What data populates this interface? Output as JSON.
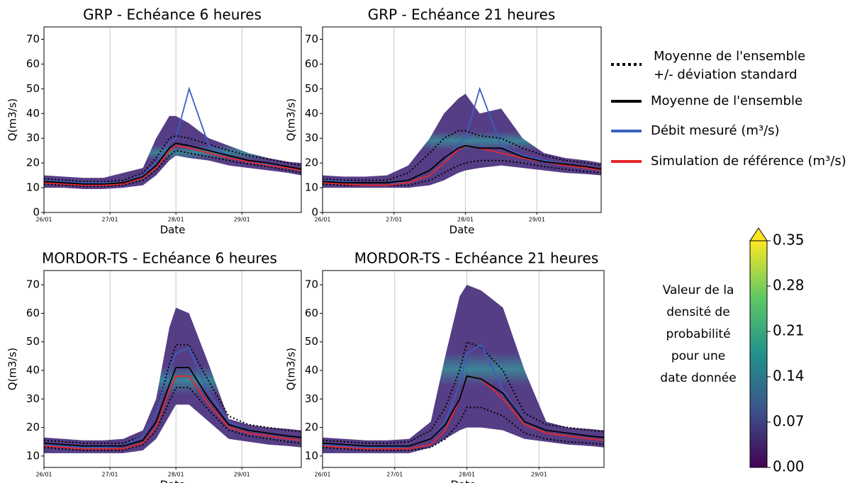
{
  "chart_data": [
    {
      "type": "line",
      "title": "GRP - Echéance 6 heures",
      "xlabel": "Date",
      "ylabel": "Q(m3/s)",
      "x": [
        0,
        0.3,
        0.6,
        0.9,
        1.2,
        1.5,
        1.7,
        1.9,
        2.0,
        2.2,
        2.5,
        2.8,
        3.1,
        3.4,
        3.7,
        3.9
      ],
      "xlim": [
        0,
        3.9
      ],
      "xticks": [
        {
          "value": 0,
          "label": "26/01"
        },
        {
          "value": 1,
          "label": "27/01"
        },
        {
          "value": 2,
          "label": "28/01"
        },
        {
          "value": 3,
          "label": "29/01"
        }
      ],
      "ylim": [
        0,
        75
      ],
      "yticks": [
        0,
        10,
        20,
        30,
        40,
        50,
        60,
        70
      ],
      "grid": "x",
      "band": {
        "color": "#472d7b",
        "lower": [
          10,
          10,
          9.5,
          9.5,
          10,
          11,
          15,
          21,
          23,
          22,
          21,
          19,
          18,
          17,
          16,
          15
        ],
        "upper": [
          15,
          14.5,
          14,
          14,
          16,
          18,
          30,
          39,
          39,
          36,
          30,
          27,
          24,
          22,
          20.5,
          20
        ]
      },
      "series": [
        {
          "color": "#000000",
          "style": "dotted",
          "values": [
            13.5,
            13,
            12.5,
            12.5,
            13,
            16,
            22,
            30,
            31,
            30,
            27.5,
            25,
            23,
            21.5,
            20,
            19
          ]
        },
        {
          "color": "#000000",
          "style": "dotted",
          "values": [
            11.5,
            11,
            10.5,
            10.5,
            11,
            13,
            17,
            23,
            25,
            24,
            22.5,
            21,
            19.5,
            18.5,
            17,
            16
          ]
        },
        {
          "color": "#3a5fbf",
          "style": "solid",
          "values": [
            13,
            12.5,
            12,
            12,
            12,
            15,
            20,
            28,
            30,
            50,
            27,
            23,
            21,
            19.5,
            18.5,
            17.5
          ]
        },
        {
          "color": "#e8262a",
          "style": "solid",
          "values": [
            12,
            11.5,
            11,
            11,
            11.5,
            14,
            18,
            25,
            27,
            26,
            24,
            22,
            20.5,
            19,
            18,
            17
          ]
        },
        {
          "color": "#000000",
          "style": "solid",
          "values": [
            12.5,
            12,
            11.5,
            11.5,
            12,
            14.5,
            19,
            26,
            28,
            27,
            25,
            23,
            21,
            20,
            18.5,
            17.5
          ]
        }
      ]
    },
    {
      "type": "line",
      "title": "GRP - Echéance 21 heures",
      "xlabel": "Date",
      "ylabel": "Q(m3/s)",
      "x": [
        0,
        0.3,
        0.6,
        0.9,
        1.2,
        1.5,
        1.7,
        1.9,
        2.0,
        2.2,
        2.5,
        2.8,
        3.1,
        3.4,
        3.7,
        3.9
      ],
      "xlim": [
        0,
        3.9
      ],
      "xticks": [
        {
          "value": 0,
          "label": "26/01"
        },
        {
          "value": 1,
          "label": "27/01"
        },
        {
          "value": 2,
          "label": "28/01"
        },
        {
          "value": 3,
          "label": "29/01"
        }
      ],
      "ylim": [
        0,
        75
      ],
      "yticks": [
        0,
        10,
        20,
        30,
        40,
        50,
        60,
        70
      ],
      "grid": "x",
      "band": {
        "color": "#472d7b",
        "lower": [
          10,
          10,
          10,
          10,
          10,
          11,
          13,
          16,
          17,
          18,
          19,
          18,
          17,
          16,
          15.5,
          15
        ],
        "upper": [
          15,
          14.5,
          14.5,
          15,
          19,
          30,
          40,
          46,
          48,
          40,
          42,
          30,
          24,
          22,
          21,
          20
        ]
      },
      "series": [
        {
          "color": "#000000",
          "style": "dotted",
          "values": [
            13.5,
            13,
            13,
            13,
            16,
            24,
            30,
            33,
            33,
            31,
            30,
            26,
            23,
            21,
            20,
            19
          ]
        },
        {
          "color": "#000000",
          "style": "dotted",
          "values": [
            11.5,
            11,
            11,
            11,
            11,
            13,
            16,
            19,
            20,
            21,
            21,
            20,
            18.5,
            17.5,
            16.5,
            16
          ]
        },
        {
          "color": "#3a5fbf",
          "style": "solid",
          "values": [
            13,
            12.5,
            12,
            12,
            12,
            15,
            20,
            28,
            30,
            50,
            27,
            23,
            21,
            19.5,
            18.5,
            17.5
          ]
        },
        {
          "color": "#e8262a",
          "style": "solid",
          "values": [
            12,
            11.5,
            11,
            11,
            12,
            15,
            20,
            25.5,
            27,
            26,
            24,
            22,
            20.5,
            19,
            18,
            17
          ]
        },
        {
          "color": "#000000",
          "style": "solid",
          "values": [
            12.5,
            12,
            12,
            12,
            13,
            17,
            22,
            26,
            27,
            26,
            26,
            22.5,
            20.5,
            19.5,
            18.5,
            17.5
          ]
        }
      ]
    },
    {
      "type": "line",
      "title": "MORDOR-TS - Echéance 6 heures",
      "xlabel": "Date",
      "ylabel": "Q(m3/s)",
      "x": [
        0,
        0.3,
        0.6,
        0.9,
        1.2,
        1.5,
        1.7,
        1.9,
        2.0,
        2.2,
        2.5,
        2.8,
        3.1,
        3.4,
        3.7,
        3.9
      ],
      "xlim": [
        0,
        3.9
      ],
      "xticks": [
        {
          "value": 0,
          "label": "26/01"
        },
        {
          "value": 1,
          "label": "27/01"
        },
        {
          "value": 2,
          "label": "28/01"
        },
        {
          "value": 3,
          "label": "29/01"
        }
      ],
      "ylim": [
        6,
        75
      ],
      "yticks": [
        10,
        20,
        30,
        40,
        50,
        60,
        70
      ],
      "grid": "x",
      "band": {
        "color": "#472d7b",
        "lower": [
          11,
          11,
          11,
          11,
          11,
          12,
          16,
          24,
          28,
          28,
          22,
          16,
          15,
          14,
          13.5,
          13
        ],
        "upper": [
          16.5,
          16,
          15.5,
          15.5,
          16,
          19,
          30,
          55,
          62,
          60,
          42,
          23,
          21,
          20,
          19.5,
          19
        ]
      },
      "series": [
        {
          "color": "#000000",
          "style": "dotted",
          "values": [
            15.5,
            15,
            14.5,
            14.5,
            14.5,
            17,
            25,
            42,
            49,
            49,
            36,
            24,
            21,
            20,
            19,
            18.5
          ]
        },
        {
          "color": "#000000",
          "style": "dotted",
          "values": [
            13,
            12.5,
            12,
            12,
            12,
            14,
            19,
            29,
            34,
            34,
            26,
            19,
            17,
            16,
            15,
            14.5
          ]
        },
        {
          "color": "#3a5fbf",
          "style": "solid",
          "values": [
            14,
            13.5,
            13,
            13,
            13.5,
            17,
            25,
            40,
            46,
            48,
            32,
            22,
            19,
            18,
            17,
            16.5
          ]
        },
        {
          "color": "#e8262a",
          "style": "solid",
          "values": [
            13.5,
            13,
            12.5,
            12.5,
            12.5,
            14.5,
            20,
            33,
            38,
            38,
            28,
            20,
            18,
            17,
            16,
            15.5
          ]
        },
        {
          "color": "#000000",
          "style": "solid",
          "values": [
            14.5,
            14,
            13.5,
            13.5,
            13.5,
            15.5,
            22,
            35,
            41,
            41,
            30,
            21,
            19,
            18,
            17,
            16.5
          ]
        }
      ]
    },
    {
      "type": "line",
      "title": "MORDOR-TS - Echéance 21 heures",
      "xlabel": "Date",
      "ylabel": "Q(m3/s)",
      "x": [
        0,
        0.3,
        0.6,
        0.9,
        1.2,
        1.5,
        1.7,
        1.9,
        2.0,
        2.2,
        2.5,
        2.8,
        3.1,
        3.4,
        3.7,
        3.9
      ],
      "xlim": [
        0,
        3.9
      ],
      "xticks": [
        {
          "value": 0,
          "label": "26/01"
        },
        {
          "value": 1,
          "label": "27/01"
        },
        {
          "value": 2,
          "label": "28/01"
        },
        {
          "value": 3,
          "label": "29/01"
        }
      ],
      "ylim": [
        6,
        75
      ],
      "yticks": [
        10,
        20,
        30,
        40,
        50,
        60,
        70
      ],
      "grid": "x",
      "band": {
        "color": "#472d7b",
        "lower": [
          11,
          11,
          11,
          11,
          11,
          13,
          16,
          19,
          20,
          20,
          19,
          16,
          15,
          14,
          13.5,
          13
        ],
        "upper": [
          16.5,
          16,
          15.5,
          15.5,
          16,
          22,
          45,
          66,
          70,
          68,
          62,
          40,
          22,
          20,
          19.5,
          19
        ]
      },
      "series": [
        {
          "color": "#000000",
          "style": "dotted",
          "values": [
            15.5,
            15,
            14.5,
            14.5,
            15,
            19,
            27,
            40,
            50,
            48,
            40,
            25,
            21,
            20,
            19,
            18.5
          ]
        },
        {
          "color": "#000000",
          "style": "dotted",
          "values": [
            13,
            12.5,
            12,
            12,
            12,
            13,
            16,
            22,
            27,
            27,
            24,
            18,
            16,
            15,
            14.5,
            14
          ]
        },
        {
          "color": "#3a5fbf",
          "style": "solid",
          "values": [
            14,
            13.5,
            13,
            13,
            13.5,
            16,
            22,
            35,
            46,
            49,
            33,
            22,
            19,
            18,
            17,
            16.5
          ]
        },
        {
          "color": "#e8262a",
          "style": "solid",
          "values": [
            13.5,
            13,
            12.5,
            12.5,
            12.5,
            14,
            19,
            30,
            38,
            37,
            30,
            21,
            18,
            17,
            16,
            15.5
          ]
        },
        {
          "color": "#000000",
          "style": "solid",
          "values": [
            14.5,
            14,
            13.5,
            13.5,
            13.5,
            16,
            21,
            30,
            38,
            37,
            32,
            22,
            19,
            18,
            17,
            16.5
          ]
        }
      ]
    }
  ],
  "legend": {
    "items": [
      {
        "lines": [
          "Moyenne de l'ensemble",
          "+/- déviation standard"
        ],
        "color": "#000000",
        "style": "dotted"
      },
      {
        "lines": [
          "Moyenne de l'ensemble"
        ],
        "color": "#000000",
        "style": "solid"
      },
      {
        "lines": [
          "Débit mesuré (m³/s)"
        ],
        "color": "#3a5fbf",
        "style": "solid"
      },
      {
        "lines": [
          "Simulation de référence (m³/s)"
        ],
        "color": "#e8262a",
        "style": "solid"
      }
    ]
  },
  "colorbar": {
    "label": [
      "Valeur de la",
      "densité de",
      "probabilité",
      "pour une",
      "date donnée"
    ],
    "lim": [
      0,
      0.35
    ],
    "ticks": [
      {
        "value": 0,
        "label": "0.00"
      },
      0.07,
      0.14,
      0.21,
      0.28,
      0.35
    ],
    "colors": [
      "#440154",
      "#3b528b",
      "#21918c",
      "#5ec962",
      "#fde725"
    ]
  }
}
